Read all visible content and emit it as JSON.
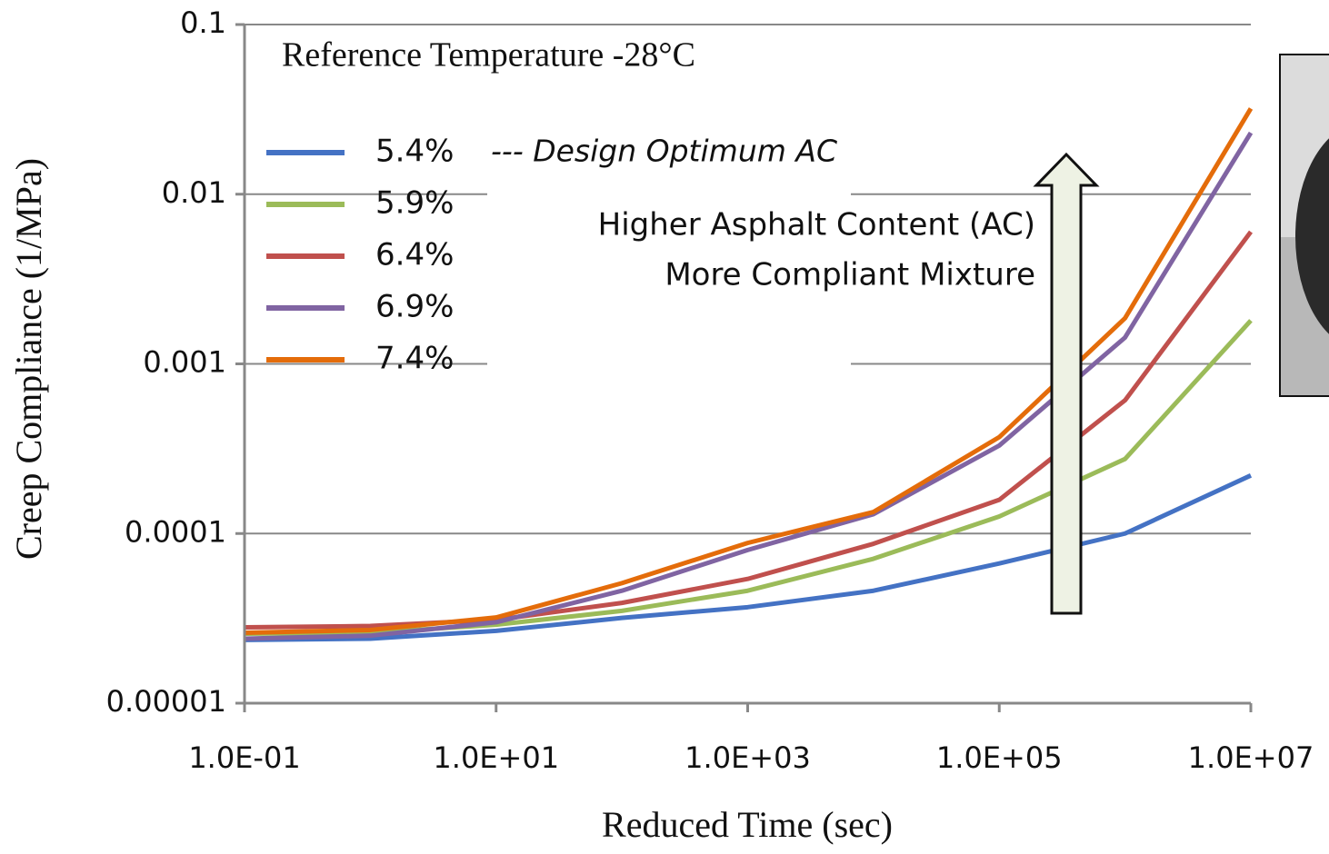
{
  "chart_data": {
    "type": "line",
    "x_scale": "log",
    "y_scale": "log",
    "xlabel": "Reduced Time (sec)",
    "ylabel": "Creep Compliance (1/MPa)",
    "x": [
      0.1,
      1,
      10,
      100,
      1000,
      10000,
      100000,
      1000000,
      10000000
    ],
    "series": [
      {
        "name": "5.4%",
        "color": "#4472c4",
        "values": [
          2.36e-05,
          2.4e-05,
          2.67e-05,
          3.18e-05,
          3.68e-05,
          4.6e-05,
          6.66e-05,
          0.0001,
          0.00022
        ]
      },
      {
        "name": "5.9%",
        "color": "#9bbb59",
        "values": [
          2.57e-05,
          2.6e-05,
          2.9e-05,
          3.5e-05,
          4.6e-05,
          7.1e-05,
          0.000126,
          0.000275,
          0.0018
        ]
      },
      {
        "name": "6.4%",
        "color": "#c0504d",
        "values": [
          2.8e-05,
          2.85e-05,
          3.1e-05,
          3.9e-05,
          5.4e-05,
          8.7e-05,
          0.000158,
          0.00061,
          0.006
        ]
      },
      {
        "name": "6.9%",
        "color": "#8064a2",
        "values": [
          2.4e-05,
          2.5e-05,
          3e-05,
          4.6e-05,
          8e-05,
          0.00013,
          0.00033,
          0.00143,
          0.023
        ]
      },
      {
        "name": "7.4%",
        "color": "#e46c0a",
        "values": [
          2.6e-05,
          2.7e-05,
          3.2e-05,
          5.1e-05,
          8.8e-05,
          0.000134,
          0.00037,
          0.00186,
          0.032
        ]
      }
    ],
    "xlim": [
      0.1,
      10000000
    ],
    "xticks": [
      {
        "value": 0.1,
        "label": "1.0E-01"
      },
      {
        "value": 10,
        "label": "1.0E+01"
      },
      {
        "value": 1000,
        "label": "1.0E+03"
      },
      {
        "value": 100000,
        "label": "1.0E+05"
      },
      {
        "value": 10000000,
        "label": "1.0E+07"
      }
    ],
    "ylim": [
      1e-05,
      0.1
    ],
    "yticks": [
      1e-05,
      0.0001,
      0.001,
      0.01,
      0.1
    ],
    "grid": true,
    "legend": "upper left",
    "annotations": [
      "Reference Temperature -28°C",
      "--- Design Optimum AC",
      "Higher Asphalt Content (AC)",
      "More Compliant Mixture"
    ]
  }
}
